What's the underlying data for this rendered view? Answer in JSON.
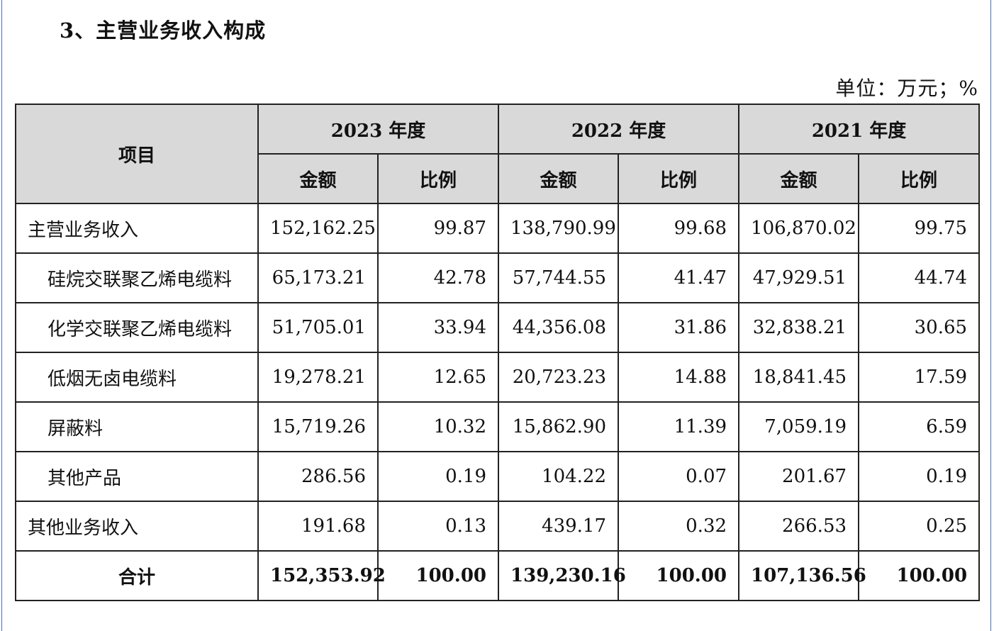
{
  "title": "3、主营业务收入构成",
  "unit": "单位：万元；%",
  "table": {
    "header": {
      "item": "项目",
      "years": [
        "2023 年度",
        "2022 年度",
        "2021 年度"
      ],
      "amount": "金额",
      "ratio": "比例"
    },
    "rows": [
      {
        "item": "主营业务收入",
        "cells": [
          "152,162.25",
          "99.87",
          "138,790.99",
          "99.68",
          "106,870.02",
          "99.75"
        ]
      },
      {
        "item": "硅烷交联聚乙烯电缆料",
        "cells": [
          "65,173.21",
          "42.78",
          "57,744.55",
          "41.47",
          "47,929.51",
          "44.74"
        ]
      },
      {
        "item": "化学交联聚乙烯电缆料",
        "cells": [
          "51,705.01",
          "33.94",
          "44,356.08",
          "31.86",
          "32,838.21",
          "30.65"
        ]
      },
      {
        "item": "低烟无卤电缆料",
        "cells": [
          "19,278.21",
          "12.65",
          "20,723.23",
          "14.88",
          "18,841.45",
          "17.59"
        ]
      },
      {
        "item": "屏蔽料",
        "cells": [
          "15,719.26",
          "10.32",
          "15,862.90",
          "11.39",
          "7,059.19",
          "6.59"
        ]
      },
      {
        "item": "其他产品",
        "cells": [
          "286.56",
          "0.19",
          "104.22",
          "0.07",
          "201.67",
          "0.19"
        ]
      },
      {
        "item": "其他业务收入",
        "cells": [
          "191.68",
          "0.13",
          "439.17",
          "0.32",
          "266.53",
          "0.25"
        ]
      },
      {
        "item": "合计",
        "cells": [
          "152,353.92",
          "100.00",
          "139,230.16",
          "100.00",
          "107,136.56",
          "100.00"
        ]
      }
    ]
  }
}
